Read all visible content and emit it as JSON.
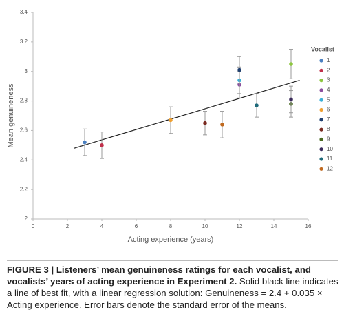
{
  "chart_data": {
    "type": "scatter",
    "x_label": "Acting experience (years)",
    "y_label": "Mean genuineness",
    "xlim": [
      0,
      16
    ],
    "xticks": [
      0,
      2,
      4,
      6,
      8,
      10,
      12,
      14,
      16
    ],
    "ylim": [
      2,
      3.4
    ],
    "yticks": [
      2,
      2.2,
      2.4,
      2.6,
      2.8,
      3,
      3.2,
      3.4
    ],
    "legend_title": "Vocalist",
    "legend_position": "right",
    "fit_line": {
      "color": "#222222",
      "x": [
        2.4,
        15.5
      ],
      "values": [
        2.48,
        2.94
      ]
    },
    "series": [
      {
        "name": "1",
        "color": "#4a7fc1",
        "x": [
          3
        ],
        "values": [
          2.52
        ],
        "errors": [
          0.09
        ]
      },
      {
        "name": "2",
        "color": "#c0304a",
        "x": [
          4
        ],
        "values": [
          2.5
        ],
        "errors": [
          0.09
        ]
      },
      {
        "name": "3",
        "color": "#8dc63f",
        "x": [
          15
        ],
        "values": [
          3.05
        ],
        "errors": [
          0.1
        ]
      },
      {
        "name": "4",
        "color": "#8b4f9e",
        "x": [
          12
        ],
        "values": [
          2.91
        ],
        "errors": [
          0.09
        ]
      },
      {
        "name": "5",
        "color": "#3bb0d8",
        "x": [
          12
        ],
        "values": [
          2.94
        ],
        "errors": [
          0.09
        ]
      },
      {
        "name": "6",
        "color": "#f0a030",
        "x": [
          8
        ],
        "values": [
          2.67
        ],
        "errors": [
          0.09
        ]
      },
      {
        "name": "7",
        "color": "#1f3f6f",
        "x": [
          12
        ],
        "values": [
          3.01
        ],
        "errors": [
          0.09
        ]
      },
      {
        "name": "8",
        "color": "#7a2a20",
        "x": [
          10
        ],
        "values": [
          2.65
        ],
        "errors": [
          0.08
        ]
      },
      {
        "name": "9",
        "color": "#4a6a20",
        "x": [
          15
        ],
        "values": [
          2.78
        ],
        "errors": [
          0.09
        ]
      },
      {
        "name": "10",
        "color": "#3a2a5a",
        "x": [
          15
        ],
        "values": [
          2.81
        ],
        "errors": [
          0.09
        ]
      },
      {
        "name": "11",
        "color": "#1f6a7a",
        "x": [
          13
        ],
        "values": [
          2.77
        ],
        "errors": [
          0.08
        ]
      },
      {
        "name": "12",
        "color": "#c06a20",
        "x": [
          11
        ],
        "values": [
          2.64
        ],
        "errors": [
          0.09
        ]
      }
    ]
  },
  "caption": {
    "bold": "FIGURE 3 | Listeners’ mean genuineness ratings for each vocalist, and vocalists’ years of acting experience in Experiment 2.",
    "text": "Solid black line indicates a line of best fit, with a linear regression solution: Genuineness = 2.4 + 0.035 × Acting experience. Error bars denote the standard error of the means."
  }
}
